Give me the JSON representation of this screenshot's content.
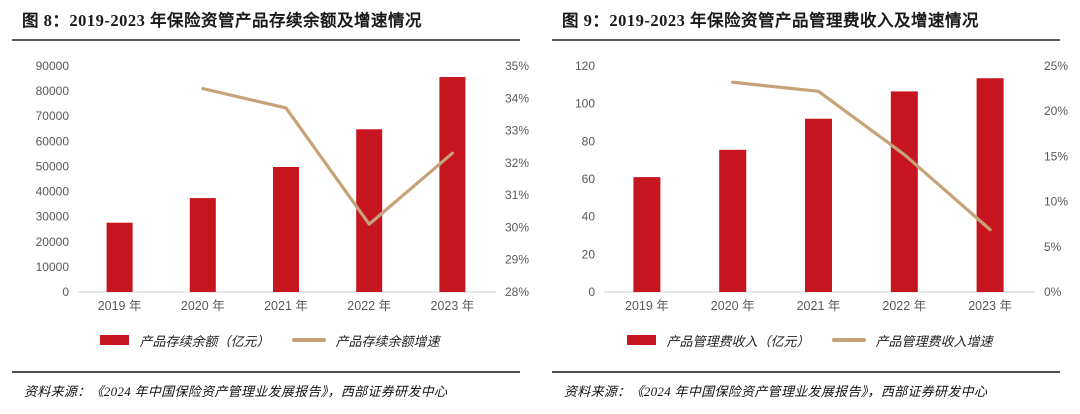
{
  "page": {
    "background": "#ffffff"
  },
  "theme": {
    "bar_color": "#C6151E",
    "line_color": "#C6A278",
    "axis_text_color": "#595959",
    "baseline_color": "#D9D9D9",
    "title_color": "#1a1a1a",
    "rule_color": "#595959"
  },
  "charts": [
    {
      "title": "图 8：2019-2023 年保险资管产品存续余额及增速情况",
      "source": "资料来源：《2024 年中国保险资产管理业发展报告》，西部证券研发中心",
      "legend": [
        {
          "type": "bar",
          "label": "产品存续余额（亿元）"
        },
        {
          "type": "line",
          "label": "产品存续余额增速"
        }
      ],
      "chart_data": {
        "type": "bar+line",
        "title": "图 8：2019-2023 年保险资管产品存续余额及增速情况",
        "categories": [
          "2019 年",
          "2020 年",
          "2021 年",
          "2022 年",
          "2023 年"
        ],
        "series": [
          {
            "name": "产品存续余额（亿元）",
            "type": "bar",
            "axis": "left",
            "values": [
              27600,
              37400,
              49800,
              64800,
              85600
            ]
          },
          {
            "name": "产品存续余额增速",
            "type": "line",
            "axis": "right",
            "values": [
              null,
              34.3,
              33.7,
              30.1,
              32.3
            ]
          }
        ],
        "y_left": {
          "min": 0,
          "max": 90000,
          "step": 10000,
          "suffix": ""
        },
        "y_right": {
          "min": 28,
          "max": 35,
          "step": 1,
          "suffix": "%"
        },
        "grid": false,
        "legend_position": "bottom"
      }
    },
    {
      "title": "图 9：2019-2023 年保险资管产品管理费收入及增速情况",
      "source": "资料来源：《2024 年中国保险资产管理业发展报告》，西部证券研发中心",
      "legend": [
        {
          "type": "bar",
          "label": "产品管理费收入（亿元）"
        },
        {
          "type": "line",
          "label": "产品管理费收入增速"
        }
      ],
      "chart_data": {
        "type": "bar+line",
        "title": "图 9：2019-2023 年保险资管产品管理费收入及增速情况",
        "categories": [
          "2019 年",
          "2020 年",
          "2021 年",
          "2022 年",
          "2023 年"
        ],
        "series": [
          {
            "name": "产品管理费收入（亿元）",
            "type": "bar",
            "axis": "left",
            "values": [
              61,
              75.5,
              92,
              106.5,
              113.5
            ]
          },
          {
            "name": "产品管理费收入增速",
            "type": "line",
            "axis": "right",
            "values": [
              null,
              23.2,
              22.2,
              15.2,
              6.9
            ]
          }
        ],
        "y_left": {
          "min": 0,
          "max": 120,
          "step": 20,
          "suffix": ""
        },
        "y_right": {
          "min": 0,
          "max": 25,
          "step": 5,
          "suffix": "%"
        },
        "grid": false,
        "legend_position": "bottom"
      }
    }
  ]
}
